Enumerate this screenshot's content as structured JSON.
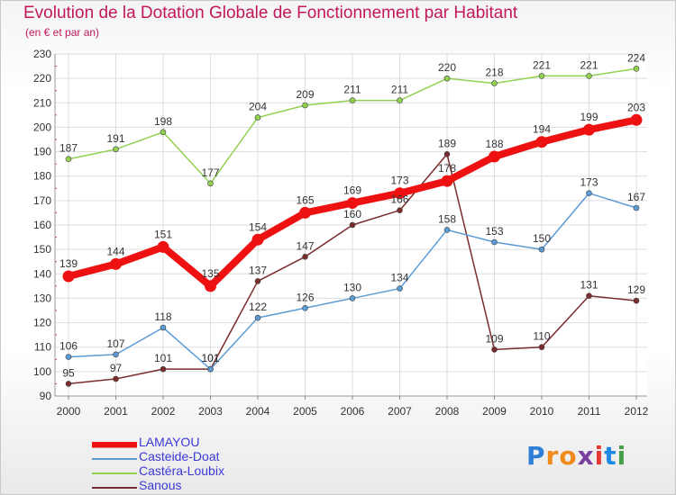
{
  "header": {
    "title": "Evolution de la Dotation Globale de Fonctionnement par Habitant",
    "subtitle": "(en € et par an)"
  },
  "logo": {
    "letters": [
      "P",
      "r",
      "o",
      "x",
      "i",
      "t",
      "i"
    ],
    "colors": [
      "#2f7fd6",
      "#f08a1c",
      "#f08a1c",
      "#7a3fa0",
      "#e53935",
      "#1e88e5",
      "#43a047"
    ]
  },
  "chart_data": {
    "type": "line",
    "title": "Evolution de la Dotation Globale de Fonctionnement par Habitant",
    "subtitle": "(en € et par an)",
    "x": [
      "2000",
      "2001",
      "2002",
      "2003",
      "2004",
      "2005",
      "2006",
      "2007",
      "2008",
      "2009",
      "2010",
      "2011",
      "2012"
    ],
    "ylim": [
      90,
      230
    ],
    "yticks": [
      90,
      100,
      110,
      120,
      130,
      140,
      150,
      160,
      170,
      180,
      190,
      200,
      210,
      220,
      230
    ],
    "grid": true,
    "legend_position": "bottom-left",
    "series": [
      {
        "name": "LAMAYOU",
        "color": "#ee1111",
        "values": [
          139,
          144,
          151,
          135,
          154,
          165,
          169,
          173,
          178,
          188,
          194,
          199,
          203
        ],
        "labels": [
          "139",
          "144",
          "151",
          "135",
          "154",
          "165",
          "169",
          "173",
          "178",
          "188",
          "194",
          "199",
          "203"
        ]
      },
      {
        "name": "Casteide-Doat",
        "color": "#5b9bd5",
        "values": [
          106,
          107,
          118,
          101,
          122,
          126,
          130,
          134,
          158,
          153,
          150,
          173,
          167
        ],
        "labels": [
          "106",
          "107",
          "118",
          "101",
          "122",
          "126",
          "130",
          "134",
          "158",
          "153",
          "150",
          "173",
          "167"
        ]
      },
      {
        "name": "Castéra-Loubix",
        "color": "#92d050",
        "values": [
          187,
          191,
          198,
          177,
          204,
          209,
          211,
          211,
          220,
          218,
          221,
          221,
          224
        ],
        "labels": [
          "187",
          "191",
          "198",
          "177",
          "204",
          "209",
          "211",
          "211",
          "220",
          "218",
          "221",
          "221",
          "224"
        ]
      },
      {
        "name": "Sanous",
        "color": "#7b2c2c",
        "values": [
          95,
          97,
          101,
          101,
          137,
          147,
          160,
          166,
          189,
          109,
          110,
          131,
          129
        ],
        "labels": [
          "95",
          "97",
          "101",
          "101",
          "137",
          "147",
          "160",
          "166",
          "189",
          "109",
          "110",
          "131",
          "129"
        ]
      }
    ]
  }
}
